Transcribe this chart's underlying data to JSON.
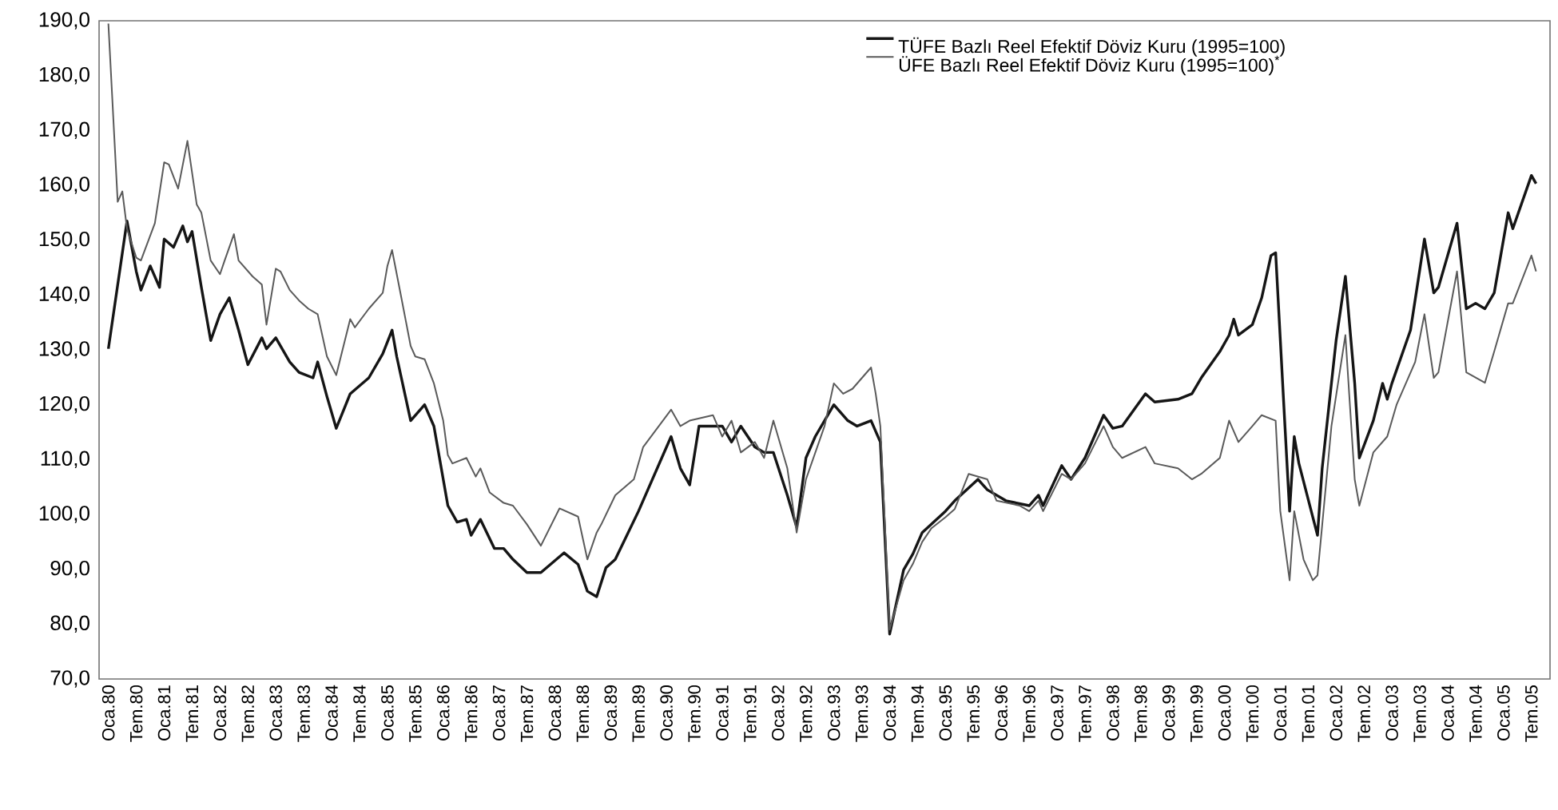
{
  "chart_data": {
    "type": "line",
    "legend": "top right",
    "xlim": [
      "1979-11",
      "2005-11"
    ],
    "xticks": [
      {
        "value": "1980-01",
        "label": "Oca.80"
      },
      {
        "value": "1980-07",
        "label": "Tem.80"
      },
      {
        "value": "1981-01",
        "label": "Oca.81"
      },
      {
        "value": "1981-07",
        "label": "Tem.81"
      },
      {
        "value": "1982-01",
        "label": "Oca.82"
      },
      {
        "value": "1982-07",
        "label": "Tem.82"
      },
      {
        "value": "1983-01",
        "label": "Oca.83"
      },
      {
        "value": "1983-07",
        "label": "Tem.83"
      },
      {
        "value": "1984-01",
        "label": "Oca.84"
      },
      {
        "value": "1984-07",
        "label": "Tem.84"
      },
      {
        "value": "1985-01",
        "label": "Oca.85"
      },
      {
        "value": "1985-07",
        "label": "Tem.85"
      },
      {
        "value": "1986-01",
        "label": "Oca.86"
      },
      {
        "value": "1986-07",
        "label": "Tem.86"
      },
      {
        "value": "1987-01",
        "label": "Oca.87"
      },
      {
        "value": "1987-07",
        "label": "Tem.87"
      },
      {
        "value": "1988-01",
        "label": "Oca.88"
      },
      {
        "value": "1988-07",
        "label": "Tem.88"
      },
      {
        "value": "1989-01",
        "label": "Oca.89"
      },
      {
        "value": "1989-07",
        "label": "Tem.89"
      },
      {
        "value": "1990-01",
        "label": "Oca.90"
      },
      {
        "value": "1990-07",
        "label": "Tem.90"
      },
      {
        "value": "1991-01",
        "label": "Oca.91"
      },
      {
        "value": "1991-07",
        "label": "Tem.91"
      },
      {
        "value": "1992-01",
        "label": "Oca.92"
      },
      {
        "value": "1992-07",
        "label": "Tem.92"
      },
      {
        "value": "1993-01",
        "label": "Oca.93"
      },
      {
        "value": "1993-07",
        "label": "Tem.93"
      },
      {
        "value": "1994-01",
        "label": "Oca.94"
      },
      {
        "value": "1994-07",
        "label": "Tem.94"
      },
      {
        "value": "1995-01",
        "label": "Oca.95"
      },
      {
        "value": "1995-07",
        "label": "Tem.95"
      },
      {
        "value": "1996-01",
        "label": "Oca.96"
      },
      {
        "value": "1996-07",
        "label": "Tem.96"
      },
      {
        "value": "1997-01",
        "label": "Oca.97"
      },
      {
        "value": "1997-07",
        "label": "Tem.97"
      },
      {
        "value": "1998-01",
        "label": "Oca.98"
      },
      {
        "value": "1998-07",
        "label": "Tem.98"
      },
      {
        "value": "1999-01",
        "label": "Oca.99"
      },
      {
        "value": "1999-07",
        "label": "Tem.99"
      },
      {
        "value": "2000-01",
        "label": "Oca.00"
      },
      {
        "value": "2000-07",
        "label": "Tem.00"
      },
      {
        "value": "2001-01",
        "label": "Oca.01"
      },
      {
        "value": "2001-07",
        "label": "Tem.01"
      },
      {
        "value": "2002-01",
        "label": "Oca.02"
      },
      {
        "value": "2002-07",
        "label": "Tem.02"
      },
      {
        "value": "2003-01",
        "label": "Oca.03"
      },
      {
        "value": "2003-07",
        "label": "Tem.03"
      },
      {
        "value": "2004-01",
        "label": "Oca.04"
      },
      {
        "value": "2004-07",
        "label": "Tem.04"
      },
      {
        "value": "2005-01",
        "label": "Oca.05"
      },
      {
        "value": "2005-07",
        "label": "Tem.05"
      }
    ],
    "ylim": [
      70,
      190
    ],
    "yticks": [
      {
        "value": 70,
        "label": "70,0"
      },
      {
        "value": 80,
        "label": "80,0"
      },
      {
        "value": 90,
        "label": "90,0"
      },
      {
        "value": 100,
        "label": "100,0"
      },
      {
        "value": 110,
        "label": "110,0"
      },
      {
        "value": 120,
        "label": "120,0"
      },
      {
        "value": 130,
        "label": "130,0"
      },
      {
        "value": 140,
        "label": "140,0"
      },
      {
        "value": 150,
        "label": "150,0"
      },
      {
        "value": 160,
        "label": "160,0"
      },
      {
        "value": 170,
        "label": "170,0"
      },
      {
        "value": 180,
        "label": "180,0"
      },
      {
        "value": 190,
        "label": "190,0"
      }
    ],
    "series": [
      {
        "name": "TÜFE Bazlı Reel Efektif Döviz Kuru (1995=100)",
        "color": "#151515",
        "x": [
          "1980-01",
          "1980-05",
          "1980-07",
          "1980-08",
          "1980-10",
          "1980-12",
          "1981-01",
          "1981-03",
          "1981-05",
          "1981-06",
          "1981-07",
          "1981-09",
          "1981-11",
          "1982-01",
          "1982-03",
          "1982-05",
          "1982-07",
          "1982-10",
          "1982-11",
          "1983-01",
          "1983-04",
          "1983-06",
          "1983-09",
          "1983-10",
          "1983-12",
          "1984-02",
          "1984-05",
          "1984-09",
          "1984-12",
          "1985-02",
          "1985-03",
          "1985-06",
          "1985-09",
          "1985-11",
          "1986-02",
          "1986-04",
          "1986-06",
          "1986-07",
          "1986-09",
          "1986-12",
          "1987-02",
          "1987-04",
          "1987-07",
          "1987-10",
          "1988-03",
          "1988-06",
          "1988-08",
          "1988-10",
          "1988-12",
          "1989-02",
          "1989-07",
          "1989-09",
          "1990-02",
          "1990-04",
          "1990-06",
          "1990-08",
          "1991-01",
          "1991-03",
          "1991-05",
          "1991-08",
          "1991-10",
          "1991-12",
          "1992-03",
          "1992-05",
          "1992-07",
          "1992-09",
          "1993-01",
          "1993-04",
          "1993-06",
          "1993-09",
          "1993-11",
          "1994-01",
          "1994-04",
          "1994-06",
          "1994-08",
          "1995-01",
          "1995-03",
          "1995-08",
          "1995-10",
          "1996-02",
          "1996-07",
          "1996-09",
          "1996-10",
          "1997-02",
          "1997-04",
          "1997-07",
          "1997-11",
          "1998-01",
          "1998-03",
          "1998-08",
          "1998-10",
          "1999-03",
          "1999-06",
          "1999-08",
          "1999-12",
          "2000-02",
          "2000-03",
          "2000-04",
          "2000-07",
          "2000-09",
          "2000-11",
          "2000-12",
          "2001-02",
          "2001-03",
          "2001-04",
          "2001-05",
          "2001-09",
          "2001-10",
          "2002-01",
          "2002-03",
          "2002-05",
          "2002-06",
          "2002-09",
          "2002-11",
          "2002-12",
          "2003-01",
          "2003-05",
          "2003-08",
          "2003-10",
          "2003-11",
          "2004-03",
          "2004-05",
          "2004-07",
          "2004-09",
          "2004-11",
          "2005-02",
          "2005-03",
          "2005-07",
          "2005-08"
        ],
        "values": [
          130.2,
          153.5,
          144.3,
          140.9,
          145.3,
          141.4,
          150.2,
          148.7,
          152.6,
          149.7,
          151.6,
          141.4,
          131.7,
          136.5,
          139.5,
          133.6,
          127.3,
          132.2,
          130.2,
          132.2,
          127.8,
          125.9,
          124.9,
          127.8,
          121.5,
          115.7,
          122.0,
          124.9,
          129.3,
          133.6,
          128.8,
          117.1,
          120.0,
          116.1,
          101.6,
          98.6,
          99.1,
          96.2,
          99.1,
          93.8,
          93.8,
          91.8,
          89.4,
          89.4,
          93.0,
          90.9,
          86.0,
          85.0,
          90.3,
          91.8,
          100.6,
          104.5,
          114.2,
          108.4,
          105.4,
          116.1,
          116.1,
          113.2,
          116.1,
          112.3,
          111.3,
          111.3,
          103.5,
          97.7,
          110.3,
          114.2,
          120.0,
          117.1,
          116.1,
          117.1,
          113.2,
          78.2,
          89.9,
          92.8,
          96.7,
          100.6,
          102.5,
          106.4,
          104.5,
          102.5,
          101.6,
          103.5,
          101.6,
          108.9,
          106.4,
          110.3,
          118.1,
          115.7,
          116.1,
          122.0,
          120.5,
          121.0,
          122.0,
          124.9,
          129.7,
          132.7,
          135.6,
          132.7,
          134.6,
          139.5,
          147.2,
          147.7,
          116.1,
          100.6,
          114.2,
          109.3,
          96.2,
          108.4,
          131.7,
          143.4,
          123.9,
          110.3,
          117.1,
          123.9,
          121.0,
          123.9,
          133.6,
          150.2,
          140.4,
          141.4,
          153.1,
          137.5,
          138.5,
          137.5,
          140.4,
          155.0,
          152.1,
          161.8,
          160.3
        ]
      },
      {
        "name": "ÜFE Bazlı Reel Efektif Döviz Kuru (1995=100)$^{*}$",
        "color": "#5a5a5a",
        "x": [
          "1980-01",
          "1980-03",
          "1980-04",
          "1980-05",
          "1980-07",
          "1980-08",
          "1980-11",
          "1981-01",
          "1981-02",
          "1981-04",
          "1981-06",
          "1981-08",
          "1981-09",
          "1981-11",
          "1982-01",
          "1982-02",
          "1982-04",
          "1982-05",
          "1982-08",
          "1982-10",
          "1982-11",
          "1983-01",
          "1983-02",
          "1983-04",
          "1983-06",
          "1983-08",
          "1983-10",
          "1983-12",
          "1984-02",
          "1984-05",
          "1984-06",
          "1984-09",
          "1984-12",
          "1985-01",
          "1985-02",
          "1985-04",
          "1985-06",
          "1985-07",
          "1985-09",
          "1985-11",
          "1986-01",
          "1986-02",
          "1986-03",
          "1986-06",
          "1986-08",
          "1986-09",
          "1986-11",
          "1987-02",
          "1987-04",
          "1987-07",
          "1987-10",
          "1988-02",
          "1988-06",
          "1988-08",
          "1988-10",
          "1988-11",
          "1989-02",
          "1989-06",
          "1989-08",
          "1990-02",
          "1990-04",
          "1990-06",
          "1990-11",
          "1991-01",
          "1991-03",
          "1991-05",
          "1991-08",
          "1991-10",
          "1991-12",
          "1992-03",
          "1992-05",
          "1992-07",
          "1992-11",
          "1993-01",
          "1993-03",
          "1993-05",
          "1993-09",
          "1993-10",
          "1993-11",
          "1994-01",
          "1994-04",
          "1994-06",
          "1994-08",
          "1994-10",
          "1995-01",
          "1995-03",
          "1995-06",
          "1995-10",
          "1995-12",
          "1996-05",
          "1996-07",
          "1996-09",
          "1996-10",
          "1997-02",
          "1997-04",
          "1997-07",
          "1997-11",
          "1998-01",
          "1998-03",
          "1998-08",
          "1998-10",
          "1999-03",
          "1999-06",
          "1999-08",
          "1999-12",
          "2000-02",
          "2000-04",
          "2000-07",
          "2000-09",
          "2000-12",
          "2001-01",
          "2001-03",
          "2001-04",
          "2001-06",
          "2001-08",
          "2001-09",
          "2001-12",
          "2002-03",
          "2002-05",
          "2002-06",
          "2002-09",
          "2002-12",
          "2003-02",
          "2003-06",
          "2003-08",
          "2003-10",
          "2003-11",
          "2004-03",
          "2004-05",
          "2004-09",
          "2004-11",
          "2005-02",
          "2005-03",
          "2005-07",
          "2005-08"
        ],
        "values": [
          189.5,
          157.0,
          158.9,
          152.1,
          146.8,
          146.3,
          153.1,
          164.2,
          163.8,
          159.4,
          168.1,
          156.5,
          155.0,
          146.3,
          143.8,
          146.3,
          151.1,
          146.3,
          143.4,
          141.9,
          134.6,
          144.8,
          144.3,
          140.9,
          139.0,
          137.5,
          136.5,
          128.8,
          125.4,
          135.6,
          134.1,
          137.5,
          140.4,
          145.3,
          148.2,
          139.5,
          130.7,
          128.8,
          128.3,
          123.9,
          117.1,
          110.8,
          109.3,
          110.3,
          106.9,
          108.4,
          104.0,
          102.1,
          101.6,
          98.2,
          94.3,
          101.1,
          99.6,
          91.8,
          96.7,
          98.2,
          103.5,
          106.4,
          112.3,
          119.1,
          116.1,
          117.1,
          118.1,
          114.2,
          117.1,
          111.3,
          113.2,
          110.3,
          117.1,
          108.4,
          96.7,
          106.4,
          116.1,
          123.9,
          122.0,
          122.9,
          126.8,
          122.0,
          116.1,
          79.0,
          88.0,
          91.0,
          95.0,
          97.5,
          99.5,
          101.0,
          107.4,
          106.4,
          102.5,
          101.6,
          100.6,
          102.5,
          100.6,
          107.4,
          106.4,
          109.3,
          116.1,
          112.3,
          110.3,
          112.3,
          109.3,
          108.4,
          106.4,
          107.4,
          110.3,
          117.1,
          113.2,
          116.1,
          118.1,
          117.1,
          100.6,
          88.0,
          100.6,
          91.8,
          88.0,
          88.9,
          116.1,
          132.7,
          106.4,
          101.6,
          111.3,
          114.2,
          120.0,
          127.8,
          136.5,
          124.9,
          125.9,
          144.3,
          125.9,
          124.0,
          129.7,
          138.5,
          138.5,
          147.2,
          144.3
        ]
      }
    ]
  }
}
